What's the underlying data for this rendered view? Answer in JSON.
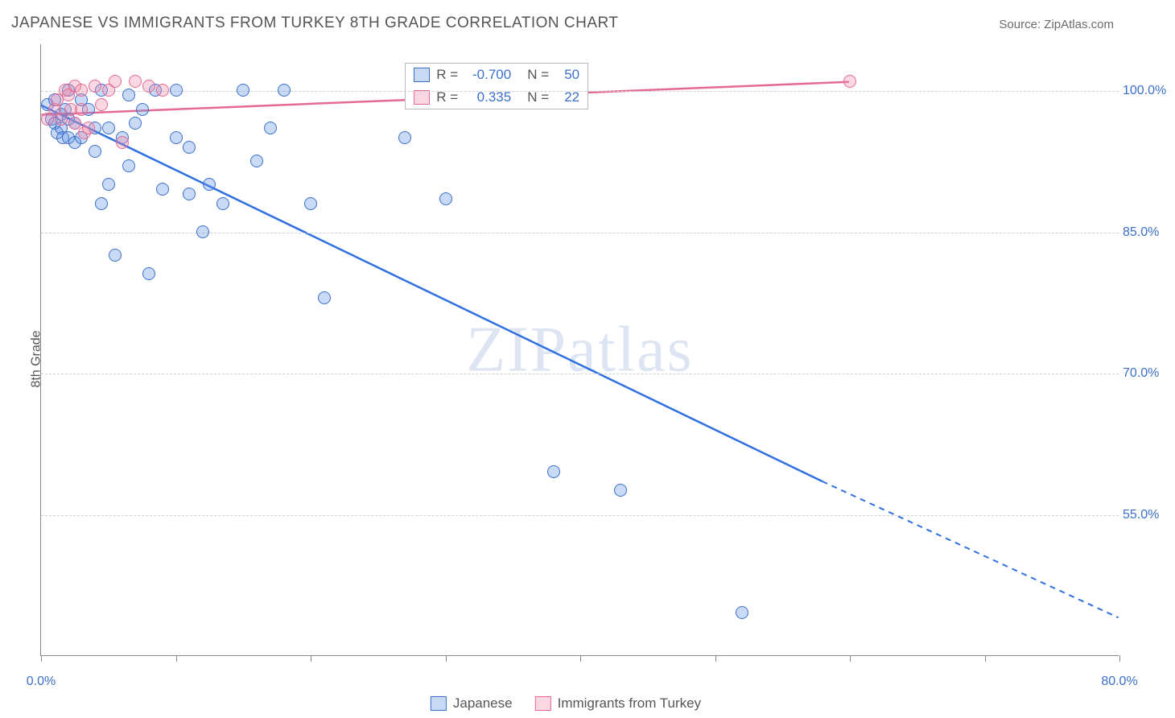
{
  "title": "JAPANESE VS IMMIGRANTS FROM TURKEY 8TH GRADE CORRELATION CHART",
  "source_label": "Source:",
  "source_value": "ZipAtlas.com",
  "ylabel": "8th Grade",
  "watermark": "ZIPatlas",
  "chart": {
    "type": "scatter-correlation",
    "background_color": "#ffffff",
    "grid_color": "#d0d0d0",
    "axis_color": "#888888",
    "text_color": "#555555",
    "value_color": "#3b6fc9",
    "xlim": [
      0,
      80
    ],
    "ylim": [
      40,
      105
    ],
    "y_ticks": [
      55.0,
      70.0,
      85.0,
      100.0
    ],
    "y_tick_labels": [
      "55.0%",
      "70.0%",
      "85.0%",
      "100.0%"
    ],
    "x_ticks": [
      0,
      10,
      20,
      30,
      40,
      50,
      60,
      70,
      80
    ],
    "x_tick_labels": {
      "0": "0.0%",
      "80": "80.0%"
    },
    "marker_radius": 8,
    "marker_border_width": 1.2,
    "series": [
      {
        "id": "japanese",
        "label": "Japanese",
        "fill": "rgba(100,150,230,0.35)",
        "stroke": "#3b6fc9",
        "line_color": "#2f6fe0",
        "R": "-0.700",
        "N": "50",
        "trend": {
          "x1": 0,
          "y1": 98.5,
          "x2": 58,
          "y2": 58.5,
          "dash_to_x": 80,
          "dash_to_y": 44.0
        },
        "points": [
          [
            0.5,
            98.5
          ],
          [
            0.8,
            97.0
          ],
          [
            1.0,
            99.0
          ],
          [
            1.0,
            96.5
          ],
          [
            1.2,
            95.5
          ],
          [
            1.5,
            97.5
          ],
          [
            1.5,
            96.0
          ],
          [
            1.6,
            95.0
          ],
          [
            1.8,
            98.0
          ],
          [
            2.0,
            97.0
          ],
          [
            2.0,
            95.0
          ],
          [
            2.0,
            100.0
          ],
          [
            2.5,
            96.5
          ],
          [
            2.5,
            94.5
          ],
          [
            3.0,
            99.0
          ],
          [
            3.0,
            95.0
          ],
          [
            3.5,
            98.0
          ],
          [
            4.0,
            96.0
          ],
          [
            4.0,
            93.5
          ],
          [
            4.5,
            100.0
          ],
          [
            4.5,
            88.0
          ],
          [
            5.0,
            90.0
          ],
          [
            5.0,
            96.0
          ],
          [
            5.5,
            82.5
          ],
          [
            6.0,
            95.0
          ],
          [
            6.5,
            92.0
          ],
          [
            6.5,
            99.5
          ],
          [
            7.0,
            96.5
          ],
          [
            7.5,
            98.0
          ],
          [
            8.0,
            80.5
          ],
          [
            8.5,
            100.0
          ],
          [
            9.0,
            89.5
          ],
          [
            10.0,
            95.0
          ],
          [
            10.0,
            100.0
          ],
          [
            11.0,
            89.0
          ],
          [
            11.0,
            94.0
          ],
          [
            12.0,
            85.0
          ],
          [
            12.5,
            90.0
          ],
          [
            13.5,
            88.0
          ],
          [
            15.0,
            100.0
          ],
          [
            16.0,
            92.5
          ],
          [
            17.0,
            96.0
          ],
          [
            18.0,
            100.0
          ],
          [
            20.0,
            88.0
          ],
          [
            21.0,
            78.0
          ],
          [
            27.0,
            95.0
          ],
          [
            30.0,
            88.5
          ],
          [
            38.0,
            59.5
          ],
          [
            43.0,
            57.5
          ],
          [
            52.0,
            44.5
          ]
        ]
      },
      {
        "id": "immigrants-turkey",
        "label": "Immigrants from Turkey",
        "fill": "rgba(240,140,170,0.35)",
        "stroke": "#e46a94",
        "line_color": "#e46a94",
        "R": "0.335",
        "N": "22",
        "trend": {
          "x1": 0,
          "y1": 97.5,
          "x2": 60,
          "y2": 101.0,
          "dash_to_x": null,
          "dash_to_y": null
        },
        "points": [
          [
            0.5,
            97.0
          ],
          [
            1.0,
            98.0
          ],
          [
            1.2,
            99.0
          ],
          [
            1.5,
            97.0
          ],
          [
            1.8,
            100.0
          ],
          [
            2.0,
            99.5
          ],
          [
            2.2,
            98.0
          ],
          [
            2.5,
            100.5
          ],
          [
            2.5,
            96.5
          ],
          [
            3.0,
            98.0
          ],
          [
            3.0,
            100.0
          ],
          [
            3.2,
            95.5
          ],
          [
            3.5,
            96.0
          ],
          [
            4.0,
            100.5
          ],
          [
            4.5,
            98.5
          ],
          [
            5.0,
            100.0
          ],
          [
            5.5,
            101.0
          ],
          [
            6.0,
            94.5
          ],
          [
            7.0,
            101.0
          ],
          [
            8.0,
            100.5
          ],
          [
            9.0,
            100.0
          ],
          [
            60.0,
            101.0
          ]
        ]
      }
    ]
  },
  "legend_top": {
    "rows": [
      {
        "swatch_fill": "rgba(100,150,230,0.35)",
        "swatch_stroke": "#3b6fc9",
        "r_label": "R =",
        "r_val": "-0.700",
        "n_label": "N =",
        "n_val": "50"
      },
      {
        "swatch_fill": "rgba(240,140,170,0.35)",
        "swatch_stroke": "#e46a94",
        "r_label": "R =",
        "r_val": " 0.335",
        "n_label": "N =",
        "n_val": "22"
      }
    ]
  },
  "legend_bottom": [
    {
      "swatch_fill": "rgba(100,150,230,0.35)",
      "swatch_stroke": "#3b6fc9",
      "label": "Japanese"
    },
    {
      "swatch_fill": "rgba(240,140,170,0.35)",
      "swatch_stroke": "#e46a94",
      "label": "Immigrants from Turkey"
    }
  ]
}
